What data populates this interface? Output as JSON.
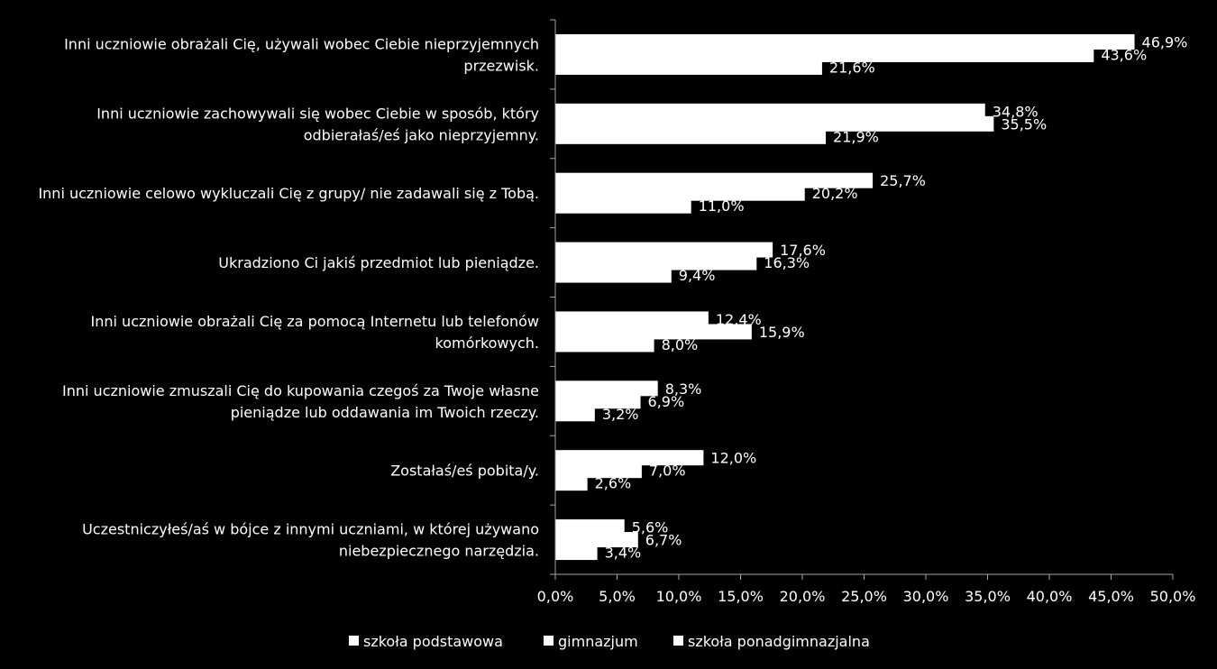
{
  "chart_data": {
    "type": "bar",
    "orientation": "horizontal",
    "categories": [
      [
        "Inni uczniowie obrażali Cię, używali wobec Ciebie nieprzyjemnych",
        "przezwisk."
      ],
      [
        "Inni uczniowie zachowywali się wobec Ciebie w sposób, który",
        "odbierałaś/eś jako nieprzyjemny."
      ],
      [
        "Inni uczniowie celowo wykluczali Cię z grupy/ nie zadawali się z Tobą."
      ],
      [
        "Ukradziono Ci jakiś przedmiot lub pieniądze."
      ],
      [
        "Inni uczniowie obrażali Cię za pomocą Internetu lub telefonów",
        "komórkowych."
      ],
      [
        "Inni uczniowie zmuszali Cię do kupowania czegoś za Twoje własne",
        "pieniądze lub oddawania im Twoich rzeczy."
      ],
      [
        "Zostałaś/eś pobita/y."
      ],
      [
        "Uczestniczyłeś/aś w bójce z innymi uczniami, w której używano",
        "niebezpiecznego narzędzia."
      ]
    ],
    "series": [
      {
        "name": "szkoła podstawowa",
        "values": [
          46.9,
          34.8,
          25.7,
          17.6,
          12.4,
          8.3,
          12.0,
          5.6
        ],
        "labels": [
          "46,9%",
          "34,8%",
          "25,7%",
          "17,6%",
          "12,4%",
          "8,3%",
          "12,0%",
          "5,6%"
        ]
      },
      {
        "name": "gimnazjum",
        "values": [
          43.6,
          35.5,
          20.2,
          16.3,
          15.9,
          6.9,
          7.0,
          6.7
        ],
        "labels": [
          "43,6%",
          "35,5%",
          "20,2%",
          "16,3%",
          "15,9%",
          "6,9%",
          "7,0%",
          "6,7%"
        ]
      },
      {
        "name": "szkoła ponadgimnazjalna",
        "values": [
          21.6,
          21.9,
          11.0,
          9.4,
          8.0,
          3.2,
          2.6,
          3.4
        ],
        "labels": [
          "21,6%",
          "21,9%",
          "11,0%",
          "9,4%",
          "8,0%",
          "3,2%",
          "2,6%",
          "3,4%"
        ]
      }
    ],
    "xlim": [
      0,
      50
    ],
    "xticks": [
      0,
      5,
      10,
      15,
      20,
      25,
      30,
      35,
      40,
      45,
      50
    ],
    "xtick_labels": [
      "0,0%",
      "5,0%",
      "10,0%",
      "15,0%",
      "20,0%",
      "25,0%",
      "30,0%",
      "35,0%",
      "40,0%",
      "45,0%",
      "50,0%"
    ],
    "title": "",
    "xlabel": "",
    "ylabel": "",
    "grid": false,
    "legend_position": "bottom",
    "colors": {
      "background": "#000000",
      "bars": "#ffffff",
      "text": "#ffffff",
      "axis": "#a6a6a6"
    }
  }
}
